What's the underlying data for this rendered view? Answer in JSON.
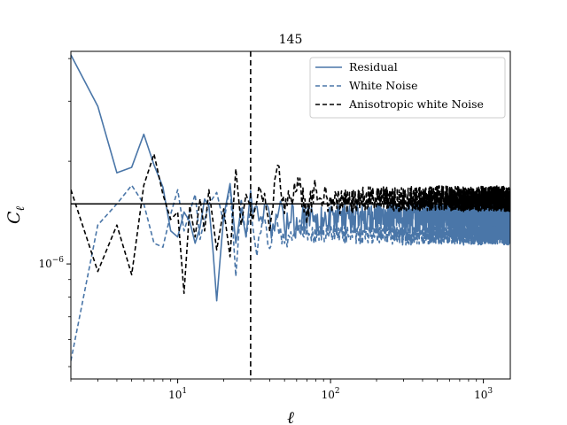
{
  "chart_data": {
    "type": "line",
    "title": "145",
    "xlabel": "ℓ",
    "ylabel": "C",
    "ylabel_subscript": "ℓ",
    "xscale": "log",
    "yscale": "log",
    "xlim": [
      2,
      1500
    ],
    "ylim": [
      4.6e-07,
      4.2e-06
    ],
    "x_ticks": [
      {
        "value": 10,
        "base": "10",
        "exp": "1"
      },
      {
        "value": 100,
        "base": "10",
        "exp": "2"
      },
      {
        "value": 1000,
        "base": "10",
        "exp": "3"
      }
    ],
    "y_ticks": [
      {
        "value": 1e-06,
        "base": "10",
        "exp": "−6"
      }
    ],
    "hline": {
      "y": 1.5e-06,
      "color": "#000000"
    },
    "vline": {
      "x": 30,
      "color": "#000000",
      "style": "dashed"
    },
    "legend_position": "top-right",
    "series": [
      {
        "name": "Residual",
        "color": "#4a76a8",
        "style": "solid",
        "points": [
          [
            2,
            4.1e-06
          ],
          [
            3,
            2.9e-06
          ],
          [
            4,
            1.85e-06
          ],
          [
            5,
            1.92e-06
          ],
          [
            6,
            2.4e-06
          ],
          [
            7,
            1.95e-06
          ],
          [
            8,
            1.68e-06
          ],
          [
            9,
            1.25e-06
          ],
          [
            10,
            1.2e-06
          ],
          [
            11,
            1.42e-06
          ],
          [
            12,
            1.33e-06
          ],
          [
            13,
            1.15e-06
          ],
          [
            14,
            1.28e-06
          ],
          [
            15,
            1.55e-06
          ],
          [
            16,
            1.48e-06
          ],
          [
            17,
            1.1e-06
          ],
          [
            18,
            7.8e-07
          ],
          [
            19,
            1.05e-06
          ],
          [
            20,
            1.38e-06
          ],
          [
            22,
            1.72e-06
          ],
          [
            24,
            1.15e-06
          ],
          [
            26,
            1.45e-06
          ],
          [
            28,
            1.2e-06
          ],
          [
            30,
            1.6e-06
          ],
          [
            34,
            1.3e-06
          ],
          [
            38,
            1.45e-06
          ],
          [
            42,
            1.25e-06
          ],
          [
            46,
            1.52e-06
          ],
          [
            50,
            1.3e-06
          ],
          [
            55,
            1.45e-06
          ],
          [
            60,
            1.3e-06
          ],
          [
            70,
            1.42e-06
          ],
          [
            80,
            1.35e-06
          ],
          [
            100,
            1.4e-06
          ],
          [
            150,
            1.38e-06
          ],
          [
            200,
            1.4e-06
          ],
          [
            300,
            1.39e-06
          ],
          [
            500,
            1.4e-06
          ],
          [
            800,
            1.39e-06
          ],
          [
            1200,
            1.4e-06
          ],
          [
            1500,
            1.39e-06
          ]
        ],
        "noise": {
          "from": 30,
          "up": 0.08,
          "down": 0.12
        }
      },
      {
        "name": "White Noise",
        "color": "#4a76a8",
        "style": "dashed",
        "points": [
          [
            2,
            5.2e-07
          ],
          [
            3,
            1.3e-06
          ],
          [
            4,
            1.5e-06
          ],
          [
            5,
            1.7e-06
          ],
          [
            6,
            1.5e-06
          ],
          [
            7,
            1.15e-06
          ],
          [
            8,
            1.12e-06
          ],
          [
            9,
            1.4e-06
          ],
          [
            10,
            1.65e-06
          ],
          [
            11,
            1.25e-06
          ],
          [
            12,
            1.42e-06
          ],
          [
            13,
            1.6e-06
          ],
          [
            14,
            1.18e-06
          ],
          [
            15,
            1.35e-06
          ],
          [
            16,
            1.5e-06
          ],
          [
            18,
            1.62e-06
          ],
          [
            20,
            1.32e-06
          ],
          [
            22,
            1.7e-06
          ],
          [
            24,
            9.2e-07
          ],
          [
            26,
            1.55e-06
          ],
          [
            28,
            1.2e-06
          ],
          [
            30,
            1.45e-06
          ],
          [
            33,
            1.1e-06
          ],
          [
            36,
            1.4e-06
          ],
          [
            40,
            1.15e-06
          ],
          [
            44,
            1.35e-06
          ],
          [
            50,
            1.15e-06
          ],
          [
            60,
            1.3e-06
          ],
          [
            80,
            1.22e-06
          ],
          [
            100,
            1.25e-06
          ],
          [
            150,
            1.22e-06
          ],
          [
            200,
            1.24e-06
          ],
          [
            300,
            1.22e-06
          ],
          [
            500,
            1.23e-06
          ],
          [
            800,
            1.22e-06
          ],
          [
            1200,
            1.23e-06
          ],
          [
            1500,
            1.22e-06
          ]
        ],
        "noise": {
          "from": 30,
          "up": 0.05,
          "down": 0.07
        }
      },
      {
        "name": "Anisotropic white Noise",
        "color": "#000000",
        "style": "dashed",
        "points": [
          [
            2,
            1.65e-06
          ],
          [
            3,
            9.5e-07
          ],
          [
            4,
            1.3e-06
          ],
          [
            5,
            9.3e-07
          ],
          [
            6,
            1.7e-06
          ],
          [
            7,
            2.1e-06
          ],
          [
            8,
            1.6e-06
          ],
          [
            9,
            1.35e-06
          ],
          [
            10,
            1.42e-06
          ],
          [
            11,
            8.2e-07
          ],
          [
            12,
            1.48e-06
          ],
          [
            13,
            1.2e-06
          ],
          [
            14,
            1.55e-06
          ],
          [
            15,
            1.25e-06
          ],
          [
            16,
            1.65e-06
          ],
          [
            18,
            1.1e-06
          ],
          [
            20,
            1.45e-06
          ],
          [
            22,
            1.05e-06
          ],
          [
            24,
            1.9e-06
          ],
          [
            26,
            1.3e-06
          ],
          [
            28,
            1.6e-06
          ],
          [
            30,
            1.35e-06
          ],
          [
            35,
            1.7e-06
          ],
          [
            40,
            1.3e-06
          ],
          [
            45,
            1.95e-06
          ],
          [
            50,
            1.4e-06
          ],
          [
            60,
            1.75e-06
          ],
          [
            70,
            1.4e-06
          ],
          [
            80,
            1.65e-06
          ],
          [
            100,
            1.5e-06
          ],
          [
            150,
            1.52e-06
          ],
          [
            200,
            1.54e-06
          ],
          [
            300,
            1.53e-06
          ],
          [
            500,
            1.54e-06
          ],
          [
            800,
            1.53e-06
          ],
          [
            1200,
            1.54e-06
          ],
          [
            1500,
            1.53e-06
          ]
        ],
        "noise": {
          "from": 30,
          "up": 0.1,
          "down": 0.07
        }
      }
    ]
  }
}
